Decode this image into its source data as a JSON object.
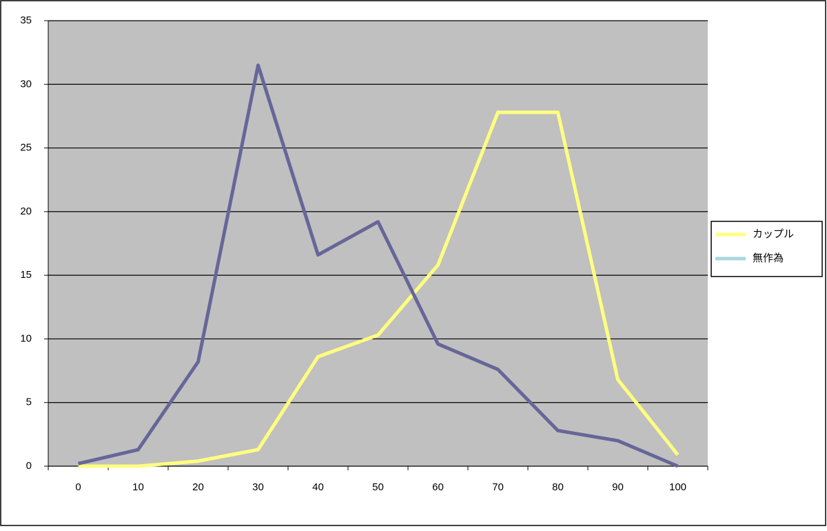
{
  "chart_data": {
    "type": "line",
    "categories": [
      "0",
      "10",
      "20",
      "30",
      "40",
      "50",
      "60",
      "70",
      "80",
      "90",
      "100"
    ],
    "series": [
      {
        "name": "カップル",
        "color": "#ffff80",
        "legend_color": "#ffff80",
        "values": [
          0,
          0,
          0.4,
          1.3,
          8.6,
          10.3,
          15.8,
          27.8,
          27.8,
          6.8,
          0.9
        ]
      },
      {
        "name": "無作為",
        "color": "#666699",
        "legend_color": "#a8d8e0",
        "values": [
          0.2,
          1.3,
          8.2,
          31.5,
          16.6,
          19.2,
          9.6,
          7.6,
          2.8,
          2.0,
          0
        ]
      }
    ],
    "ylim": [
      0,
      35
    ],
    "yticks": [
      0,
      5,
      10,
      15,
      20,
      25,
      30,
      35
    ],
    "grid": true,
    "legend": "right"
  }
}
